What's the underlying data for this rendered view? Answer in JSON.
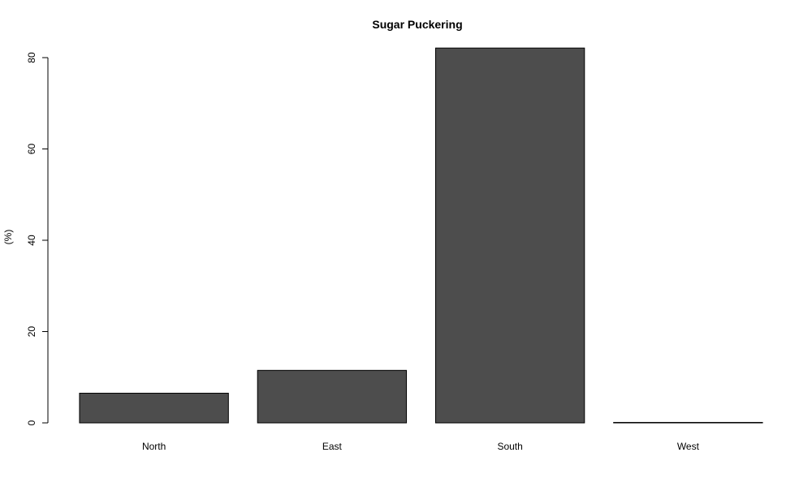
{
  "chart_data": {
    "type": "bar",
    "title": "Sugar Puckering",
    "xlabel": "",
    "ylabel": "(%)",
    "categories": [
      "North",
      "East",
      "South",
      "West"
    ],
    "values": [
      6.5,
      11.5,
      82.1,
      0.1
    ],
    "ylim": [
      0,
      80
    ],
    "yticks": [
      0,
      20,
      40,
      60,
      80
    ],
    "ytick_labels": [
      "0",
      "20",
      "40",
      "60",
      "80"
    ],
    "grid": false,
    "legend": "none",
    "bar_color": "#4d4d4d",
    "bar_edge_color": "#000000",
    "background_color": "#ffffff"
  }
}
